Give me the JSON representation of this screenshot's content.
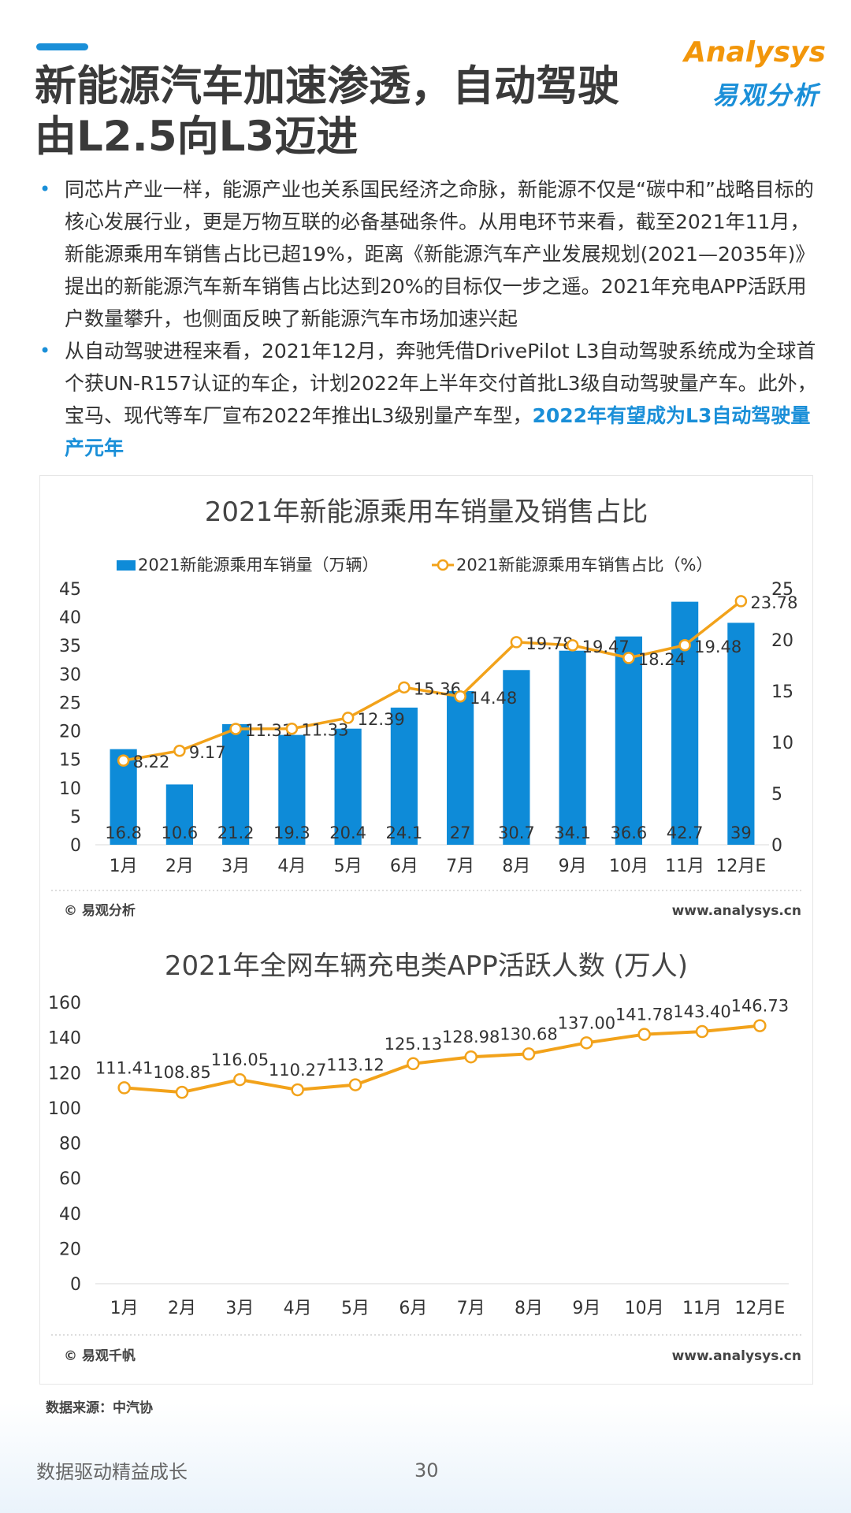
{
  "header": {
    "title_line1": "新能源汽车加速渗透，自动驾驶",
    "title_line2": "由L2.5向L3迈进",
    "logo_en": "Analysys",
    "logo_cn": "易观分析",
    "accent_color": "#1a8fd8"
  },
  "bullets": [
    {
      "text": "同芯片产业一样，能源产业也关系国民经济之命脉，新能源不仅是“碳中和”战略目标的核心发展行业，更是万物互联的必备基础条件。从用电环节来看，截至2021年11月，新能源乘用车销售占比已超19%，距离《新能源汽车产业发展规划(2021—2035年)》提出的新能源汽车新车销售占比达到20%的目标仅一步之遥。2021年充电APP活跃用户数量攀升，也侧面反映了新能源汽车市场加速兴起",
      "highlight": ""
    },
    {
      "text": "从自动驾驶进程来看，2021年12月，奔驰凭借DrivePilot  L3自动驾驶系统成为全球首个获UN-R157认证的车企，计划2022年上半年交付首批L3级自动驾驶量产车。此外，宝马、现代等车厂宣布2022年推出L3级别量产车型，",
      "highlight": "2022年有望成为L3自动驾驶量产元年"
    }
  ],
  "chart_data": [
    {
      "type": "bar",
      "title": "2021年新能源乘用车销量及销售占比",
      "categories": [
        "1月",
        "2月",
        "3月",
        "4月",
        "5月",
        "6月",
        "7月",
        "8月",
        "9月",
        "10月",
        "11月",
        "12月E"
      ],
      "series": [
        {
          "name": "2021新能源乘用车销量（万辆）",
          "type": "bar",
          "axis": "left",
          "color": "#0e8bd8",
          "values": [
            16.8,
            10.6,
            21.2,
            19.3,
            20.4,
            24.1,
            27,
            30.7,
            34.1,
            36.6,
            42.7,
            39
          ]
        },
        {
          "name": "2021新能源乘用车销售占比（%）",
          "type": "line",
          "axis": "right",
          "color": "#f2a21a",
          "values": [
            8.22,
            9.17,
            11.31,
            11.33,
            12.39,
            15.36,
            14.48,
            19.78,
            19.47,
            18.24,
            19.48,
            23.78
          ]
        }
      ],
      "ylim": [
        0,
        45
      ],
      "y_ticks": [
        0,
        5,
        10,
        15,
        20,
        25,
        30,
        35,
        40,
        45
      ],
      "y2lim": [
        0,
        25
      ],
      "y2_ticks": [
        0,
        5,
        10,
        15,
        20,
        25
      ],
      "legend": "top",
      "footer_left": "© 易观分析",
      "footer_right": "www.analysys.cn"
    },
    {
      "type": "line",
      "title": "2021年全网车辆充电类APP活跃人数 (万人)",
      "categories": [
        "1月",
        "2月",
        "3月",
        "4月",
        "5月",
        "6月",
        "7月",
        "8月",
        "9月",
        "10月",
        "11月",
        "12月E"
      ],
      "series": [
        {
          "name": "",
          "color": "#f2a21a",
          "values": [
            111.41,
            108.85,
            116.05,
            110.27,
            113.12,
            125.13,
            128.98,
            130.68,
            137.0,
            141.78,
            143.4,
            146.73
          ],
          "labels": [
            "111.41",
            "108.85",
            "116.05",
            "110.27",
            "113.12",
            "125.13",
            "128.98",
            "130.68",
            "137.00",
            "141.78",
            "143.40",
            "146.73"
          ]
        }
      ],
      "ylim": [
        0,
        160
      ],
      "y_ticks": [
        0,
        20,
        40,
        60,
        80,
        100,
        120,
        140,
        160
      ],
      "footer_left": "© 易观千帆",
      "footer_right": "www.analysys.cn"
    }
  ],
  "source": "数据来源：中汽协",
  "footer": {
    "slogan": "数据驱动精益成长",
    "page_number": "30"
  }
}
